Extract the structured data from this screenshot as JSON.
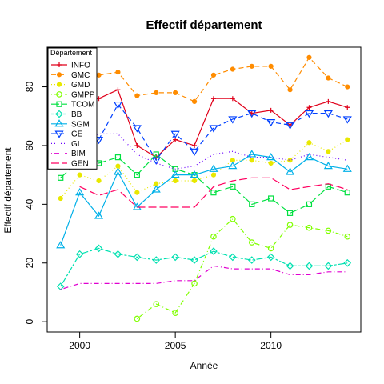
{
  "chart_data": {
    "type": "line",
    "title": "Effectif département",
    "xlabel": "Année",
    "ylabel": "Effectif département",
    "xlim": [
      1998.3,
      2014.7
    ],
    "ylim": [
      -3.5,
      93.5
    ],
    "xticks": [
      2000,
      2005,
      2010
    ],
    "yticks": [
      0,
      20,
      40,
      60,
      80
    ],
    "grid": false,
    "legend": {
      "title": "Département",
      "placement": "top-left"
    },
    "series": [
      {
        "name": "INFO",
        "color": "#e0001a",
        "marker": "plus",
        "dash": "solid",
        "x": [
          2001,
          2002,
          2003,
          2004,
          2005,
          2006,
          2007,
          2008,
          2009,
          2010,
          2011,
          2012,
          2013,
          2014
        ],
        "y": [
          76,
          79,
          60,
          56,
          62,
          60,
          76,
          76,
          71,
          72,
          67,
          73,
          75,
          73
        ]
      },
      {
        "name": "GMC",
        "color": "#ff8c00",
        "marker": "filled-circle",
        "dash": "dashed",
        "x": [
          2001,
          2002,
          2003,
          2004,
          2005,
          2006,
          2007,
          2008,
          2009,
          2010,
          2011,
          2012,
          2013,
          2014
        ],
        "y": [
          84,
          85,
          77,
          78,
          78,
          75,
          84,
          86,
          87,
          87,
          79,
          90,
          83,
          80
        ]
      },
      {
        "name": "GMD",
        "color": "#e8e800",
        "marker": "filled-circle",
        "dash": "dotted",
        "x": [
          1999,
          2000,
          2001,
          2002,
          2003,
          2004,
          2005,
          2006,
          2007,
          2008,
          2009,
          2010,
          2011,
          2012,
          2013,
          2014
        ],
        "y": [
          42,
          50,
          48,
          53,
          44,
          47,
          48,
          48,
          50,
          55,
          55,
          54,
          55,
          61,
          58,
          62
        ]
      },
      {
        "name": "GMPP",
        "color": "#80ff00",
        "marker": "open-circle",
        "dash": "dotdash",
        "x": [
          2003,
          2004,
          2005,
          2006,
          2007,
          2008,
          2009,
          2010,
          2011,
          2012,
          2013,
          2014
        ],
        "y": [
          1,
          6,
          3,
          13,
          29,
          35,
          27,
          25,
          33,
          32,
          31,
          29
        ]
      },
      {
        "name": "TCOM",
        "color": "#00e040",
        "marker": "open-square",
        "dash": "longdash",
        "x": [
          1999,
          2000,
          2001,
          2002,
          2003,
          2004,
          2005,
          2006,
          2007,
          2008,
          2009,
          2010,
          2011,
          2012,
          2013,
          2014
        ],
        "y": [
          49,
          55,
          54,
          56,
          50,
          57,
          52,
          50,
          44,
          46,
          40,
          42,
          37,
          40,
          46,
          44
        ]
      },
      {
        "name": "BB",
        "color": "#00e0b0",
        "marker": "open-diamond",
        "dash": "twodash",
        "x": [
          1999,
          2000,
          2001,
          2002,
          2003,
          2004,
          2005,
          2006,
          2007,
          2008,
          2009,
          2010,
          2011,
          2012,
          2013,
          2014
        ],
        "y": [
          12,
          23,
          25,
          23,
          22,
          21,
          22,
          21,
          24,
          22,
          21,
          22,
          19,
          19,
          19,
          20
        ]
      },
      {
        "name": "SGM",
        "color": "#00b0e8",
        "marker": "open-triangle",
        "dash": "solid",
        "x": [
          1999,
          2000,
          2001,
          2002,
          2003,
          2004,
          2005,
          2006,
          2007,
          2008,
          2009,
          2010,
          2011,
          2012,
          2013,
          2014
        ],
        "y": [
          26,
          44,
          36,
          51,
          39,
          45,
          50,
          50,
          52,
          53,
          57,
          56,
          51,
          56,
          53,
          52
        ]
      },
      {
        "name": "GE",
        "color": "#0040ff",
        "marker": "open-triangle-down",
        "dash": "dashed",
        "x": [
          2001,
          2002,
          2003,
          2004,
          2005,
          2006,
          2007,
          2008,
          2009,
          2010,
          2011,
          2012,
          2013,
          2014
        ],
        "y": [
          62,
          74,
          66,
          55,
          64,
          58,
          66,
          69,
          71,
          68,
          67,
          71,
          71,
          69
        ]
      },
      {
        "name": "GI",
        "color": "#6a00ff",
        "marker": "none",
        "dash": "dotted",
        "x": [
          1999,
          2000,
          2001,
          2002,
          2003,
          2004,
          2005,
          2006,
          2007,
          2008,
          2009,
          2010,
          2011,
          2012,
          2013,
          2014
        ],
        "y": [
          55,
          59,
          64,
          64,
          57,
          54,
          52,
          53,
          57,
          58,
          56,
          56,
          55,
          57,
          56,
          55
        ]
      },
      {
        "name": "BIM",
        "color": "#e000d0",
        "marker": "none",
        "dash": "dotdash",
        "x": [
          1999,
          2000,
          2001,
          2002,
          2003,
          2004,
          2005,
          2006,
          2007,
          2008,
          2009,
          2010,
          2011,
          2012,
          2013,
          2014
        ],
        "y": [
          11,
          13,
          13,
          13,
          13,
          13,
          14,
          14,
          19,
          18,
          18,
          18,
          16,
          16,
          17,
          17
        ]
      },
      {
        "name": "GEN",
        "color": "#ff0060",
        "marker": "none",
        "dash": "longdash",
        "x": [
          2000,
          2001,
          2002,
          2003,
          2004,
          2005,
          2006,
          2007,
          2008,
          2009,
          2010,
          2011,
          2012,
          2013,
          2014
        ],
        "y": [
          46,
          43,
          45,
          39,
          39,
          39,
          39,
          46,
          48,
          49,
          49,
          45,
          46,
          47,
          45
        ]
      }
    ]
  }
}
